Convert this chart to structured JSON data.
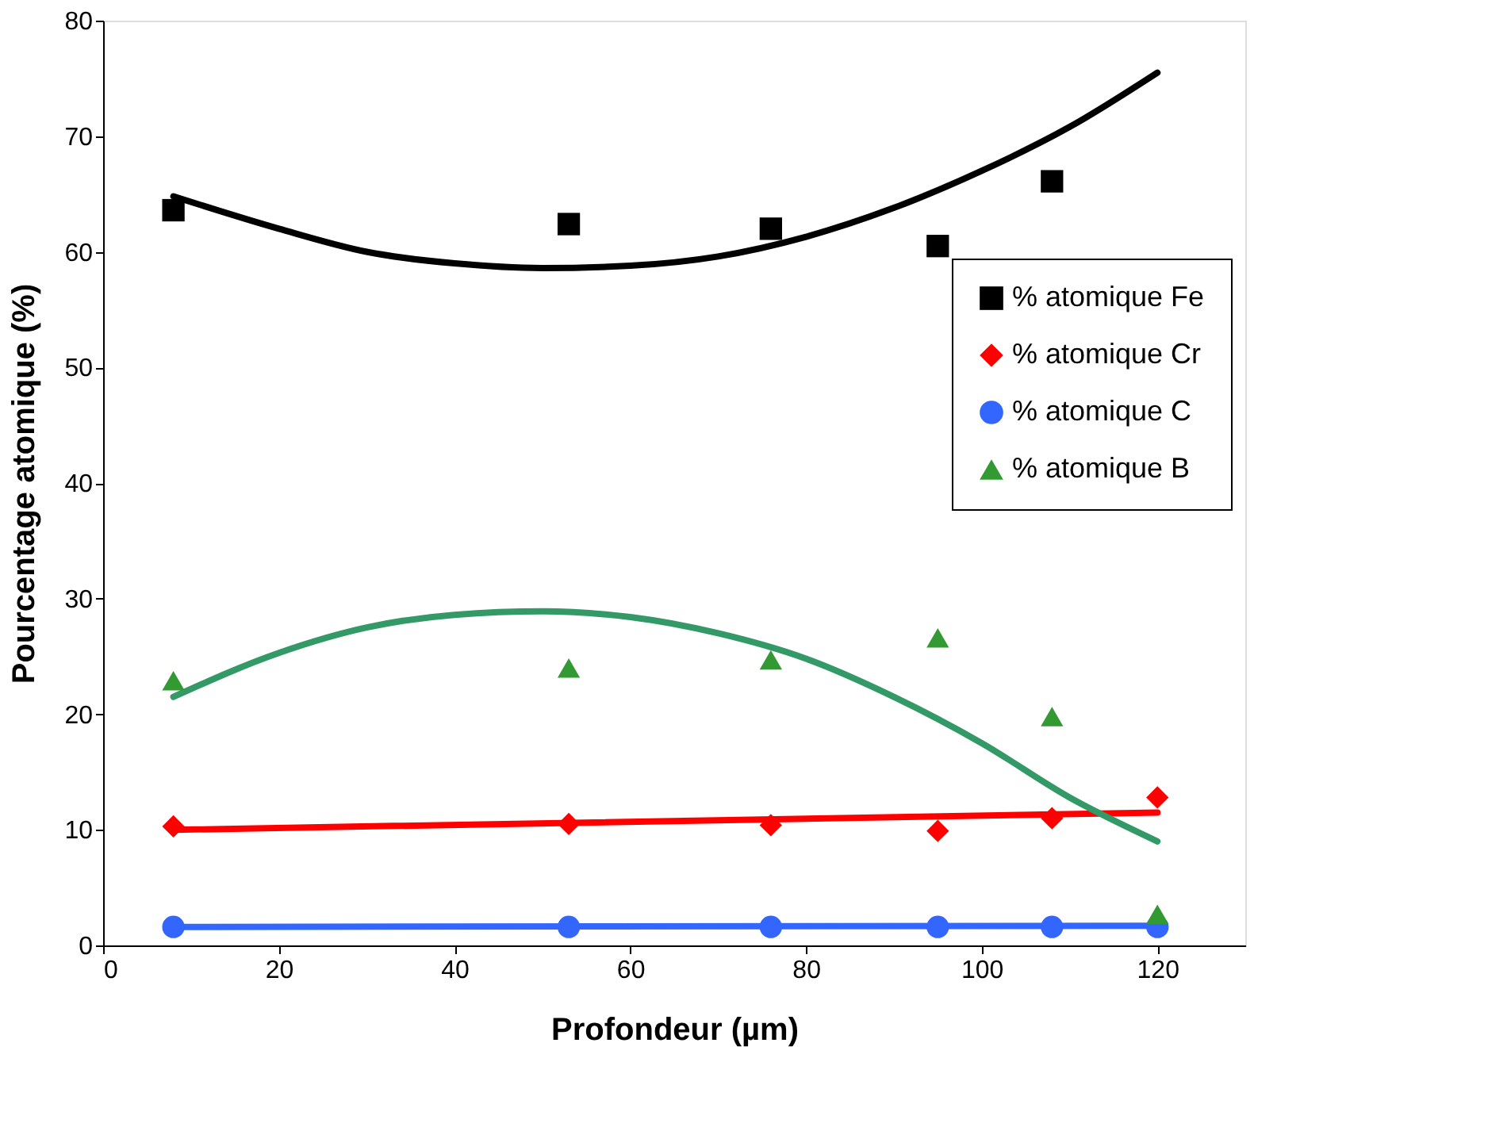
{
  "chart_data": {
    "type": "scatter",
    "xlabel": "Profondeur (µm)",
    "ylabel": "Pourcentage atomique (%)",
    "xlim": [
      0,
      130
    ],
    "xticks": [
      0,
      20,
      40,
      60,
      80,
      100,
      120
    ],
    "ylim": [
      0,
      80
    ],
    "yticks": [
      0,
      10,
      20,
      30,
      40,
      50,
      60,
      70,
      80
    ],
    "grid": false,
    "legend": "top right",
    "series": [
      {
        "name": "% atomique Fe",
        "color": "#000000",
        "marker": "square",
        "x": [
          8,
          53,
          76,
          95,
          108
        ],
        "values": [
          63.6,
          62.4,
          62,
          60.5,
          66.1
        ]
      },
      {
        "name": "% atomique Cr",
        "color": "#ff0000",
        "marker": "diamond",
        "x": [
          8,
          53,
          76,
          95,
          108,
          120
        ],
        "values": [
          10.3,
          10.5,
          10.4,
          9.9,
          11,
          12.8
        ]
      },
      {
        "name": "% atomique C",
        "color": "#3366ff",
        "marker": "circle",
        "x": [
          8,
          53,
          76,
          95,
          108,
          120
        ],
        "values": [
          1.6,
          1.6,
          1.6,
          1.6,
          1.6,
          1.6
        ]
      },
      {
        "name": "% atomique B",
        "color": "#339933",
        "marker": "triangle",
        "x": [
          8,
          53,
          76,
          95,
          108,
          120
        ],
        "values": [
          22.9,
          24,
          24.7,
          26.6,
          19.8,
          2.7
        ]
      },
      {
        "type": "line",
        "color": "#000000",
        "marker": "none",
        "x": [
          8,
          20,
          30,
          40,
          50,
          60,
          70,
          80,
          90,
          100,
          110,
          120
        ],
        "values": [
          64.8,
          62,
          60,
          59,
          58.6,
          58.8,
          59.6,
          61.3,
          63.8,
          67,
          70.8,
          75.5
        ]
      },
      {
        "type": "line",
        "color": "#ff0000",
        "marker": "none",
        "x": [
          8,
          120
        ],
        "values": [
          10,
          11.5
        ]
      },
      {
        "type": "line",
        "color": "#3366ff",
        "marker": "none",
        "x": [
          8,
          120
        ],
        "values": [
          1.6,
          1.7
        ]
      },
      {
        "type": "line",
        "color": "#339966",
        "marker": "none",
        "x": [
          8,
          20,
          30,
          40,
          50,
          60,
          70,
          80,
          90,
          100,
          110,
          120
        ],
        "values": [
          21.5,
          25.3,
          27.5,
          28.6,
          28.9,
          28.4,
          27,
          24.8,
          21.5,
          17.5,
          12.8,
          9
        ]
      }
    ]
  }
}
